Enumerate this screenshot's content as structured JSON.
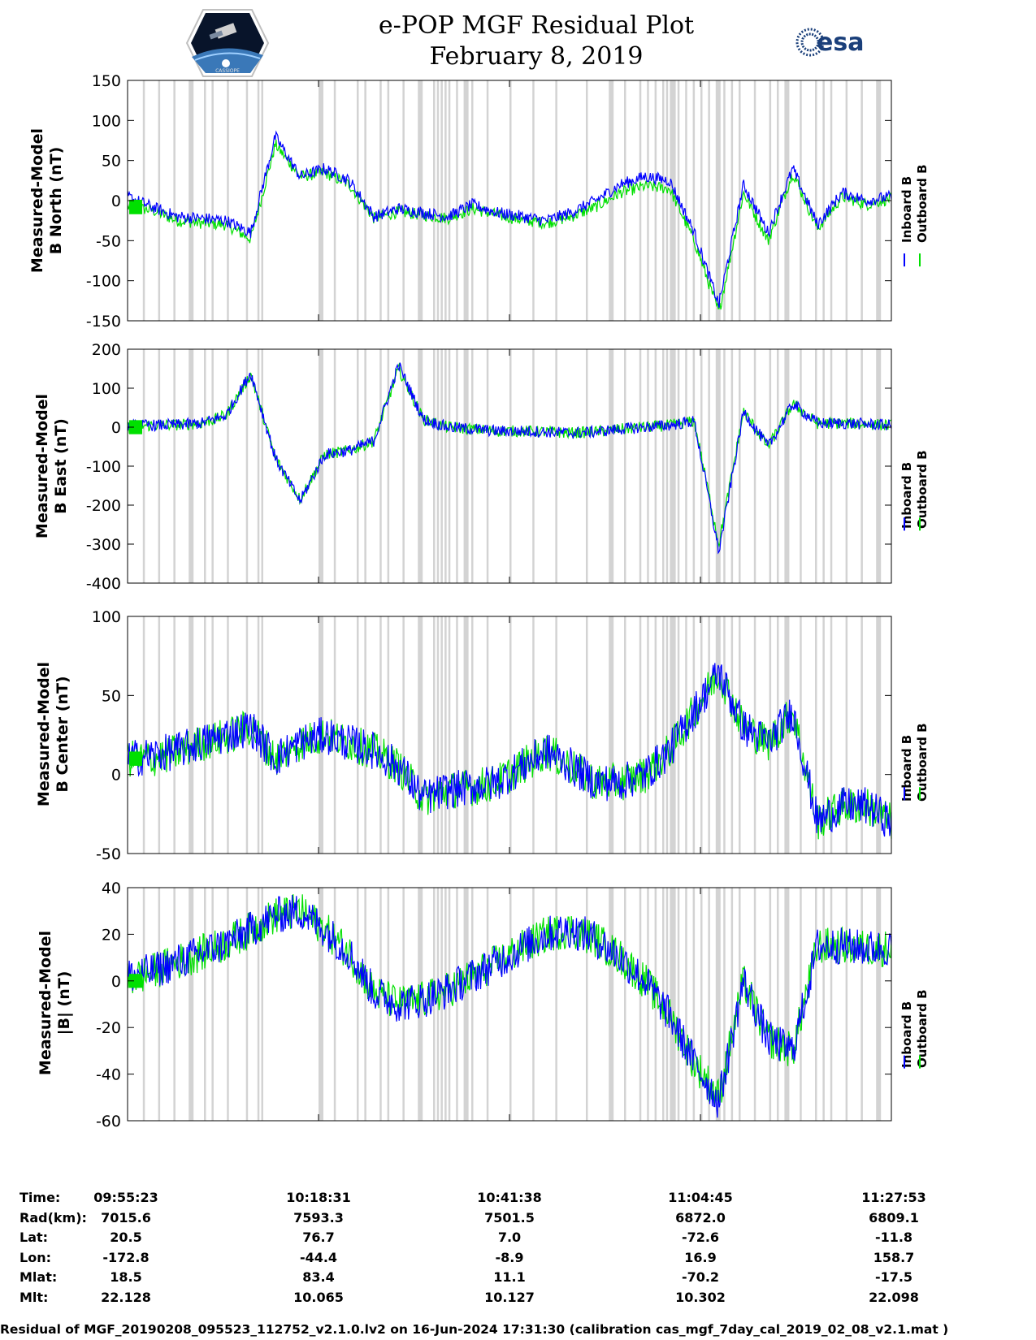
{
  "header": {
    "title": "e-POP MGF Residual Plot",
    "date": "February 8, 2019",
    "esa_logo_text": "esa",
    "left_logo_text": "CASSIOPE"
  },
  "colors": {
    "inboard": "#0000ff",
    "outboard": "#00e000",
    "gap": "#d3d3d3"
  },
  "legend": {
    "inboard": "Inboard B",
    "outboard": "Outboard B"
  },
  "chart_data": [
    {
      "type": "line",
      "title": "",
      "ylabel": [
        "Measured-Model",
        "B North (nT)"
      ],
      "ylim": [
        -150,
        150
      ],
      "yticks": [
        "150",
        "100",
        "50",
        "0",
        "-50",
        "-100",
        "-150"
      ],
      "ytick_values": [
        150,
        100,
        50,
        0,
        -50,
        -100,
        -150
      ],
      "series": [
        {
          "name": "Inboard B",
          "values": [
            5,
            -8,
            -20,
            -22,
            -25,
            -40,
            80,
            30,
            40,
            25,
            -20,
            -10,
            -15,
            -20,
            -5,
            -15,
            -20,
            -25,
            -15,
            0,
            20,
            30,
            25,
            -40,
            -130,
            20,
            -40,
            40,
            -30,
            10,
            0,
            5
          ]
        },
        {
          "name": "Outboard B",
          "values": [
            -8,
            -12,
            -25,
            -28,
            -30,
            -48,
            70,
            30,
            35,
            20,
            -22,
            -14,
            -18,
            -22,
            -10,
            -18,
            -24,
            -28,
            -20,
            -8,
            10,
            18,
            15,
            -50,
            -140,
            10,
            -50,
            35,
            -35,
            5,
            -5,
            3
          ]
        }
      ],
      "x": [
        0,
        1,
        2,
        3,
        4,
        5,
        6,
        7,
        8,
        9,
        10,
        11,
        12,
        13,
        14,
        15,
        16,
        17,
        18,
        19,
        20,
        21,
        22,
        23,
        24,
        25,
        26,
        27,
        28,
        29,
        30,
        31
      ],
      "xlim": [
        0,
        31
      ]
    },
    {
      "type": "line",
      "title": "",
      "ylabel": [
        "Measured-Model",
        "B East (nT)"
      ],
      "ylim": [
        -400,
        200
      ],
      "yticks": [
        "200",
        "100",
        "0",
        "-100",
        "-200",
        "-300",
        "-400"
      ],
      "ytick_values": [
        200,
        100,
        0,
        -100,
        -200,
        -300,
        -400
      ],
      "series": [
        {
          "name": "Inboard B",
          "values": [
            5,
            5,
            6,
            10,
            30,
            140,
            -80,
            -190,
            -70,
            -60,
            -35,
            160,
            20,
            0,
            -5,
            -10,
            -10,
            -12,
            -15,
            -12,
            -5,
            0,
            5,
            15,
            -320,
            40,
            -50,
            60,
            10,
            10,
            8,
            5
          ]
        },
        {
          "name": "Outboard B",
          "values": [
            0,
            5,
            6,
            10,
            30,
            135,
            -80,
            -185,
            -70,
            -60,
            -35,
            150,
            20,
            0,
            -5,
            -10,
            -10,
            -12,
            -15,
            -12,
            -5,
            0,
            5,
            15,
            -300,
            40,
            -50,
            60,
            10,
            10,
            8,
            5
          ]
        }
      ],
      "x": [
        0,
        1,
        2,
        3,
        4,
        5,
        6,
        7,
        8,
        9,
        10,
        11,
        12,
        13,
        14,
        15,
        16,
        17,
        18,
        19,
        20,
        21,
        22,
        23,
        24,
        25,
        26,
        27,
        28,
        29,
        30,
        31
      ],
      "xlim": [
        0,
        31
      ]
    },
    {
      "type": "line",
      "title": "",
      "ylabel": [
        "Measured-Model",
        "B Center (nT)"
      ],
      "ylim": [
        -50,
        100
      ],
      "yticks": [
        "100",
        "50",
        "0",
        "-50"
      ],
      "ytick_values": [
        100,
        50,
        0,
        -50
      ],
      "series": [
        {
          "name": "Inboard B",
          "values": [
            10,
            12,
            15,
            20,
            25,
            30,
            10,
            20,
            25,
            20,
            15,
            5,
            -15,
            -10,
            -8,
            -5,
            5,
            15,
            5,
            -5,
            -5,
            0,
            15,
            40,
            65,
            30,
            20,
            40,
            -30,
            -20,
            -20,
            -30
          ]
        },
        {
          "name": "Outboard B",
          "values": [
            10,
            10,
            14,
            20,
            24,
            30,
            10,
            20,
            25,
            20,
            15,
            5,
            -15,
            -10,
            -8,
            -5,
            5,
            15,
            5,
            -5,
            -5,
            0,
            15,
            40,
            65,
            30,
            20,
            40,
            -30,
            -20,
            -20,
            -30
          ]
        }
      ],
      "x": [
        0,
        1,
        2,
        3,
        4,
        5,
        6,
        7,
        8,
        9,
        10,
        11,
        12,
        13,
        14,
        15,
        16,
        17,
        18,
        19,
        20,
        21,
        22,
        23,
        24,
        25,
        26,
        27,
        28,
        29,
        30,
        31
      ],
      "xlim": [
        0,
        31
      ]
    },
    {
      "type": "line",
      "title": "",
      "ylabel": [
        "Measured-Model",
        "|B| (nT)"
      ],
      "ylim": [
        -60,
        40
      ],
      "yticks": [
        "40",
        "20",
        "0",
        "-20",
        "-40",
        "-60"
      ],
      "ytick_values": [
        40,
        20,
        0,
        -20,
        -40,
        -60
      ],
      "series": [
        {
          "name": "Inboard B",
          "values": [
            2,
            4,
            8,
            12,
            16,
            22,
            28,
            30,
            22,
            12,
            -5,
            -10,
            -8,
            -4,
            2,
            8,
            14,
            20,
            22,
            18,
            10,
            0,
            -15,
            -35,
            -52,
            0,
            -25,
            -30,
            15,
            15,
            14,
            14
          ]
        },
        {
          "name": "Outboard B",
          "values": [
            0,
            4,
            8,
            12,
            16,
            22,
            28,
            30,
            22,
            12,
            -5,
            -10,
            -8,
            -4,
            2,
            8,
            14,
            20,
            22,
            18,
            10,
            0,
            -15,
            -35,
            -50,
            0,
            -25,
            -30,
            15,
            15,
            14,
            14
          ]
        }
      ],
      "x": [
        0,
        1,
        2,
        3,
        4,
        5,
        6,
        7,
        8,
        9,
        10,
        11,
        12,
        13,
        14,
        15,
        16,
        17,
        18,
        19,
        20,
        21,
        22,
        23,
        24,
        25,
        26,
        27,
        28,
        29,
        30,
        31
      ],
      "xlim": [
        0,
        31
      ]
    }
  ],
  "gap_stripes": [
    0.02,
    0.04,
    0.06,
    0.08,
    0.1,
    0.11,
    0.13,
    0.155,
    0.17,
    0.175,
    0.25,
    0.27,
    0.3,
    0.31,
    0.33,
    0.34,
    0.36,
    0.38,
    0.4,
    0.405,
    0.41,
    0.415,
    0.42,
    0.43,
    0.44,
    0.45,
    0.47,
    0.5,
    0.53,
    0.56,
    0.6,
    0.63,
    0.65,
    0.67,
    0.68,
    0.69,
    0.7,
    0.705,
    0.71,
    0.715,
    0.72,
    0.73,
    0.74,
    0.75,
    0.76,
    0.77,
    0.78,
    0.79,
    0.8,
    0.82,
    0.84,
    0.85,
    0.86,
    0.88,
    0.9,
    0.91,
    0.92,
    0.94,
    0.96,
    0.98
  ],
  "time_axis": {
    "rows": [
      {
        "label": "Time:",
        "values": [
          "09:55:23",
          "10:18:31",
          "10:41:38",
          "11:04:45",
          "11:27:53"
        ]
      },
      {
        "label": "Rad(km):",
        "values": [
          "7015.6",
          "7593.3",
          "7501.5",
          "6872.0",
          "6809.1"
        ]
      },
      {
        "label": "Lat:",
        "values": [
          "20.5",
          "76.7",
          "7.0",
          "-72.6",
          "-11.8"
        ]
      },
      {
        "label": "Lon:",
        "values": [
          "-172.8",
          "-44.4",
          "-8.9",
          "16.9",
          "158.7"
        ]
      },
      {
        "label": "Mlat:",
        "values": [
          "18.5",
          "83.4",
          "11.1",
          "-70.2",
          "-17.5"
        ]
      },
      {
        "label": "Mlt:",
        "values": [
          "22.128",
          "10.065",
          "10.127",
          "10.302",
          "22.098"
        ]
      }
    ]
  },
  "footer": "Residual of MGF_20190208_095523_112752_v2.1.0.lv2 on 16-Jun-2024 17:31:30 (calibration cas_mgf_7day_cal_2019_02_08_v2.1.mat )"
}
